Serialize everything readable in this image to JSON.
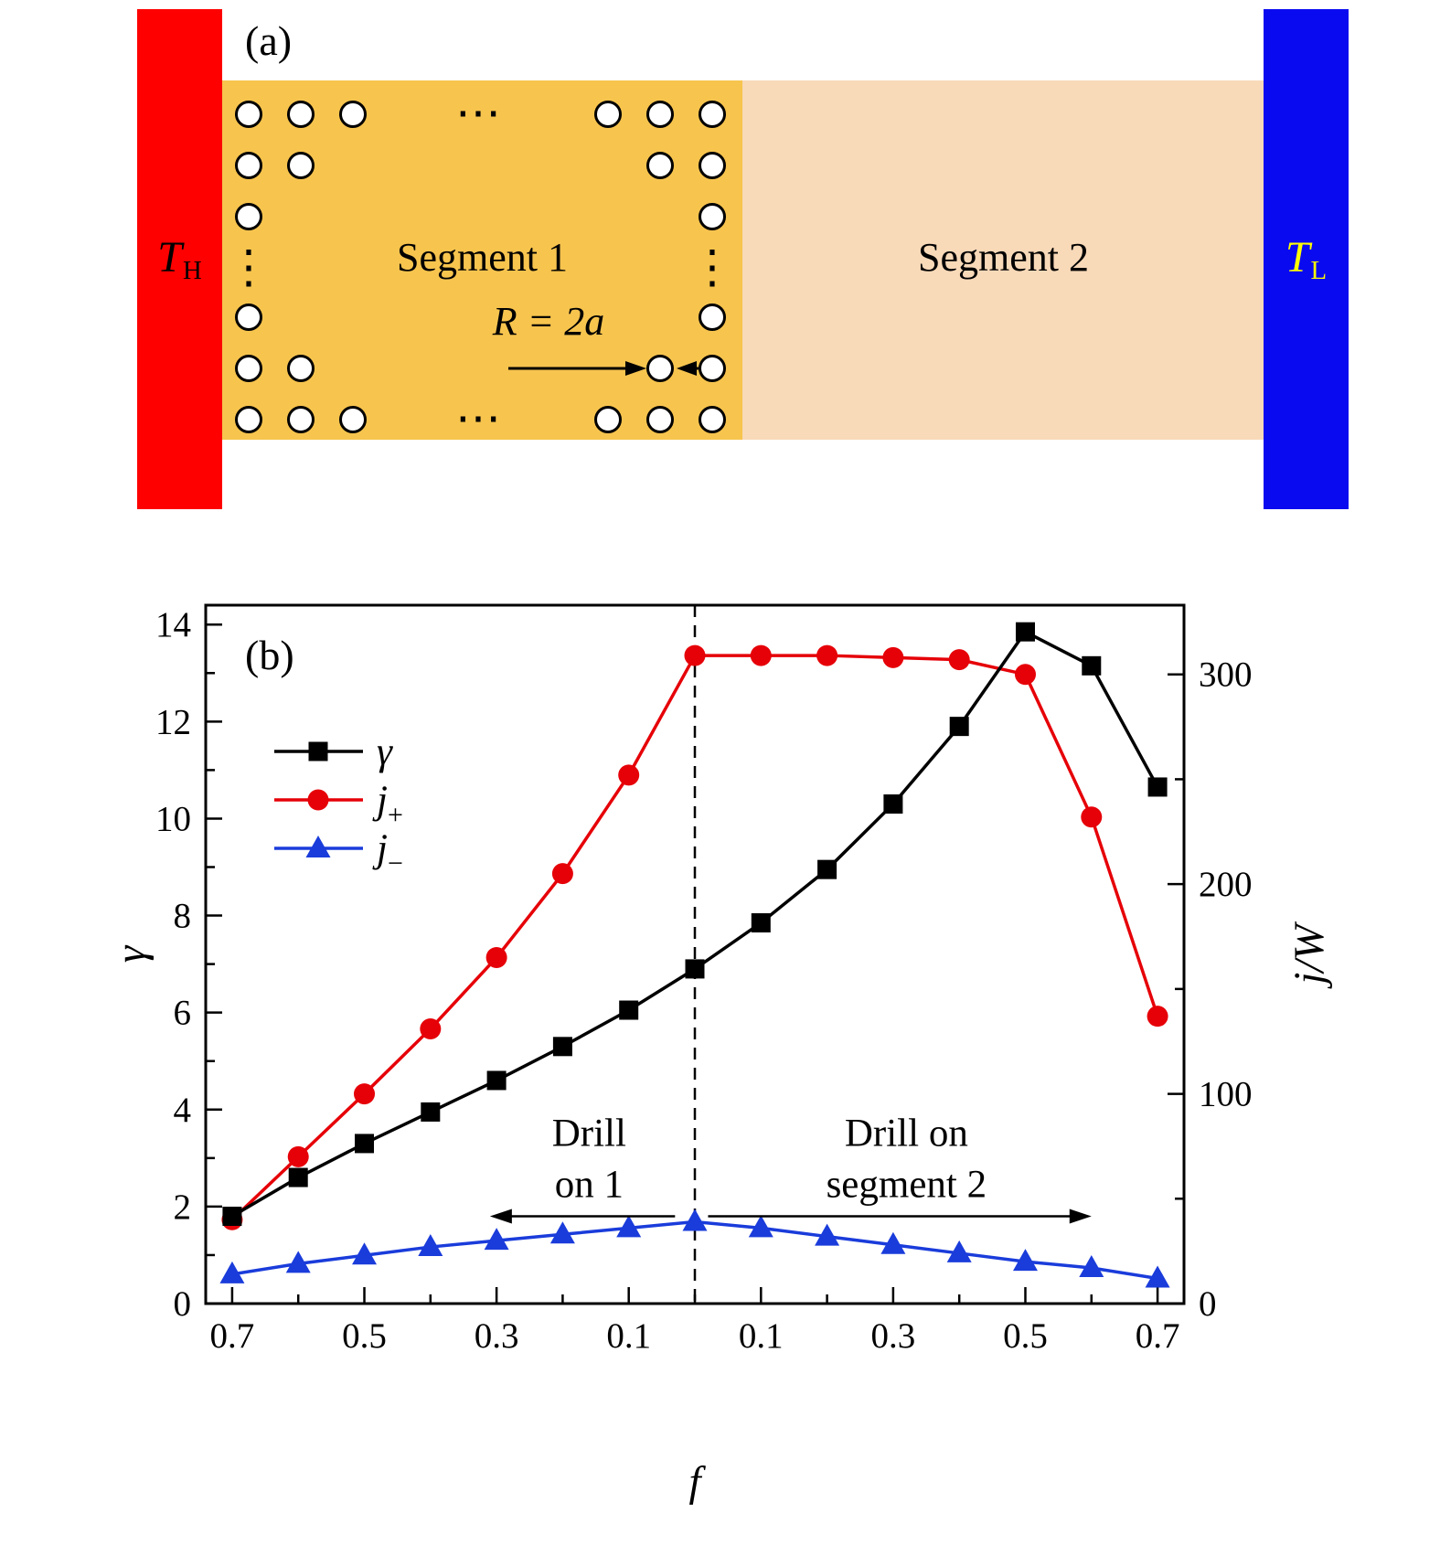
{
  "figure": {
    "background": "#ffffff"
  },
  "panel_a": {
    "label": "(a)",
    "hot_reservoir": {
      "label_main": "T",
      "label_sub": "H",
      "color": "#ff0000",
      "text_color": "#000000"
    },
    "cold_reservoir": {
      "label_main": "T",
      "label_sub": "L",
      "color": "#0a0af0",
      "text_color": "#ffff00"
    },
    "segment_1": {
      "label": "Segment 1",
      "color": "#f7c44e"
    },
    "segment_2": {
      "label": "Segment 2",
      "color": "#f8d9b8"
    },
    "radius_annotation": "R = 2a",
    "horizontal_dots": "⋯",
    "vertical_dots": "⋮"
  },
  "panel_b": {
    "label": "(b)"
  },
  "chart_data": {
    "type": "line",
    "x": [
      -0.7,
      -0.6,
      -0.5,
      -0.4,
      -0.3,
      -0.2,
      -0.1,
      0,
      0.1,
      0.2,
      0.3,
      0.4,
      0.5,
      0.6,
      0.7
    ],
    "series": [
      {
        "name": "gamma",
        "label": "γ",
        "axis": "left",
        "color": "#000000",
        "marker": "square",
        "values": [
          1.8,
          2.6,
          3.3,
          3.95,
          4.6,
          5.3,
          6.05,
          6.9,
          7.85,
          8.95,
          10.3,
          11.9,
          13.85,
          13.15,
          10.65
        ]
      },
      {
        "name": "j-plus",
        "label_main": "j",
        "label_sub": "+",
        "axis": "right",
        "color": "#e60008",
        "marker": "circle",
        "values": [
          40,
          70,
          100,
          131,
          165,
          205,
          252,
          309,
          309,
          309,
          308,
          307,
          300,
          232,
          137
        ]
      },
      {
        "name": "j-minus",
        "label_main": "j",
        "label_sub": "−",
        "axis": "right",
        "color": "#1a3cdb",
        "marker": "triangle",
        "values": [
          14,
          19,
          23,
          27,
          30,
          33,
          36,
          39,
          36,
          32,
          28,
          24,
          20,
          17,
          12
        ]
      }
    ],
    "left_axis": {
      "label": "γ",
      "ticks": [
        0,
        2,
        4,
        6,
        8,
        10,
        12,
        14
      ],
      "minor_step": 1,
      "range": [
        0,
        14.4
      ]
    },
    "right_axis": {
      "label": "j/W",
      "ticks": [
        0,
        100,
        200,
        300
      ],
      "minor_step": 50,
      "range": [
        0,
        333
      ]
    },
    "x_axis": {
      "label": "f",
      "mirrored": true,
      "ticks": [
        -0.7,
        -0.5,
        -0.3,
        -0.1,
        0.1,
        0.3,
        0.5,
        0.7
      ],
      "tick_labels": [
        "0.7",
        "0.5",
        "0.3",
        "0.1",
        "0.1",
        "0.3",
        "0.5",
        "0.7"
      ],
      "minor_step": 0.1,
      "range": [
        -0.74,
        0.74
      ]
    },
    "divider_x": 0,
    "grid": false,
    "legend_position": "upper-left",
    "annotations": [
      {
        "name": "drill-on-1",
        "lines": [
          "Drill",
          "on 1"
        ],
        "x": -0.16,
        "y": 3.25
      },
      {
        "name": "drill-on-segment-2",
        "lines": [
          "Drill on",
          "segment 2"
        ],
        "x": 0.32,
        "y": 3.25
      }
    ],
    "arrows": [
      {
        "from_x": -0.03,
        "to_x": -0.31,
        "y": 1.8
      },
      {
        "from_x": 0.02,
        "to_x": 0.6,
        "y": 1.8
      }
    ]
  }
}
